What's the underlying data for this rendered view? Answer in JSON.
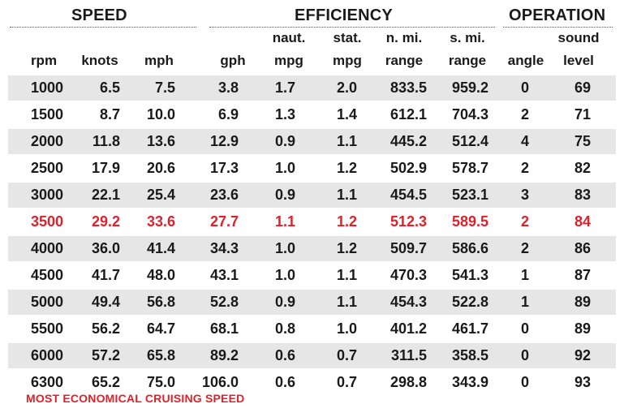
{
  "groups": {
    "speed": "SPEED",
    "efficiency": "EFFICIENCY",
    "operation": "OPERATION"
  },
  "headers": [
    {
      "line1": "",
      "line2": "rpm"
    },
    {
      "line1": "",
      "line2": "knots"
    },
    {
      "line1": "",
      "line2": "mph"
    },
    {
      "line1": "",
      "line2": "gph"
    },
    {
      "line1": "naut.",
      "line2": "mpg"
    },
    {
      "line1": "stat.",
      "line2": "mpg"
    },
    {
      "line1": "n. mi.",
      "line2": "range"
    },
    {
      "line1": "s. mi.",
      "line2": "range"
    },
    {
      "line1": "",
      "line2": "angle"
    },
    {
      "line1": "sound",
      "line2": "level"
    }
  ],
  "rows": [
    [
      "1000",
      "6.5",
      "7.5",
      "3.8",
      "1.7",
      "2.0",
      "833.5",
      "959.2",
      "0",
      "69"
    ],
    [
      "1500",
      "8.7",
      "10.0",
      "6.9",
      "1.3",
      "1.4",
      "612.1",
      "704.3",
      "2",
      "71"
    ],
    [
      "2000",
      "11.8",
      "13.6",
      "12.9",
      "0.9",
      "1.1",
      "445.2",
      "512.4",
      "4",
      "75"
    ],
    [
      "2500",
      "17.9",
      "20.6",
      "17.3",
      "1.0",
      "1.2",
      "502.9",
      "578.7",
      "2",
      "82"
    ],
    [
      "3000",
      "22.1",
      "25.4",
      "23.6",
      "0.9",
      "1.1",
      "454.5",
      "523.1",
      "3",
      "83"
    ],
    [
      "3500",
      "29.2",
      "33.6",
      "27.7",
      "1.1",
      "1.2",
      "512.3",
      "589.5",
      "2",
      "84"
    ],
    [
      "4000",
      "36.0",
      "41.4",
      "34.3",
      "1.0",
      "1.2",
      "509.7",
      "586.6",
      "2",
      "86"
    ],
    [
      "4500",
      "41.7",
      "48.0",
      "43.1",
      "1.0",
      "1.1",
      "470.3",
      "541.3",
      "1",
      "87"
    ],
    [
      "5000",
      "49.4",
      "56.8",
      "52.8",
      "0.9",
      "1.1",
      "454.3",
      "522.8",
      "1",
      "89"
    ],
    [
      "5500",
      "56.2",
      "64.7",
      "68.1",
      "0.8",
      "1.0",
      "401.2",
      "461.7",
      "0",
      "89"
    ],
    [
      "6000",
      "57.2",
      "65.8",
      "89.2",
      "0.6",
      "0.7",
      "311.5",
      "358.5",
      "0",
      "92"
    ],
    [
      "6300",
      "65.2",
      "75.0",
      "106.0",
      "0.6",
      "0.7",
      "298.8",
      "343.9",
      "0",
      "93"
    ]
  ],
  "highlight_row": 5,
  "highlight_color": "#e0202a",
  "shade_color": "#e6e6e6",
  "footnote": "MOST ECONOMICAL CRUISING SPEED"
}
